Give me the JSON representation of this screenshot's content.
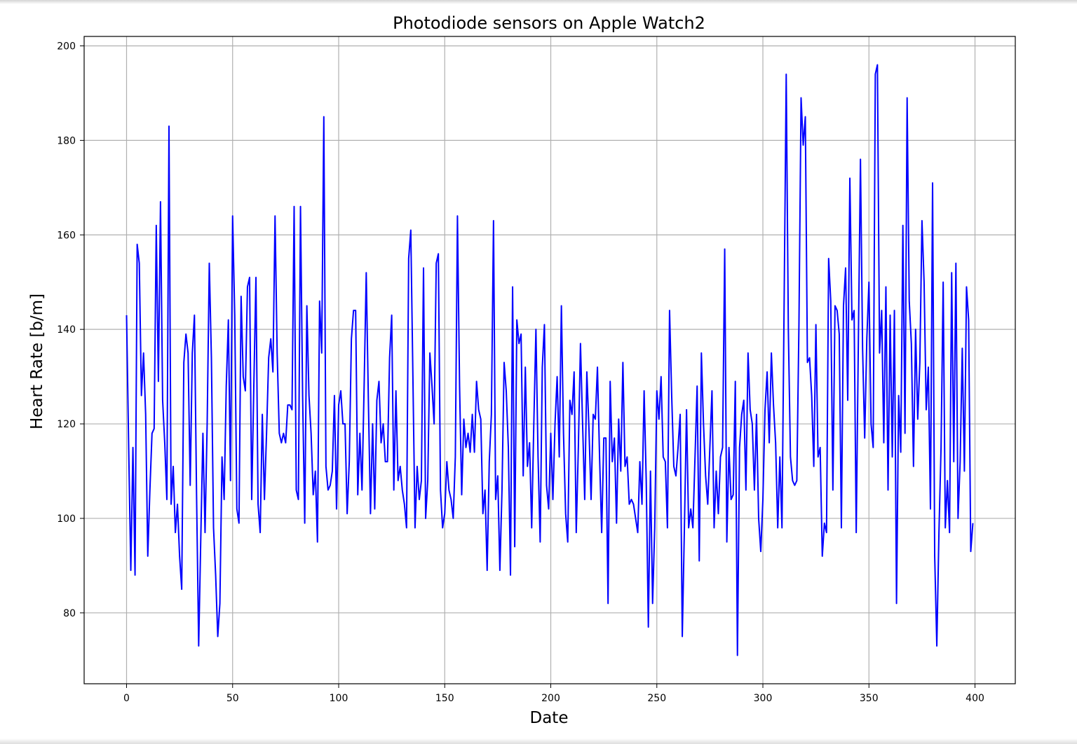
{
  "chart_data": {
    "type": "line",
    "title": "Photodiode sensors on Apple Watch2",
    "xlabel": "Date",
    "ylabel": "Heart Rate [b/m]",
    "xlim": [
      -20,
      419
    ],
    "ylim": [
      65,
      202
    ],
    "x_ticks": [
      0,
      50,
      100,
      150,
      200,
      250,
      300,
      350,
      400
    ],
    "y_ticks": [
      80,
      100,
      120,
      140,
      160,
      180,
      200
    ],
    "grid": true,
    "line_color": "#0000ff",
    "series": [
      {
        "x_start": 0,
        "x_step": 1,
        "values": [
          143,
          115,
          89,
          115,
          88,
          158,
          154,
          126,
          135,
          122,
          92,
          106,
          118,
          119,
          162,
          129,
          167,
          125,
          116,
          104,
          183,
          103,
          111,
          97,
          103,
          92,
          85,
          133,
          139,
          135,
          107,
          135,
          143,
          105,
          73,
          96,
          118,
          97,
          120,
          154,
          134,
          98,
          88,
          75,
          82,
          113,
          104,
          128,
          142,
          108,
          164,
          143,
          102,
          99,
          147,
          130,
          127,
          149,
          151,
          104,
          128,
          151,
          103,
          97,
          122,
          104,
          118,
          134,
          138,
          131,
          164,
          135,
          118,
          116,
          118,
          116,
          124,
          124,
          123,
          166,
          106,
          104,
          166,
          126,
          99,
          145,
          126,
          118,
          105,
          110,
          95,
          146,
          135,
          185,
          111,
          106,
          107,
          110,
          126,
          102,
          124,
          127,
          120,
          120,
          101,
          112,
          138,
          144,
          144,
          105,
          118,
          106,
          128,
          152,
          125,
          101,
          120,
          102,
          125,
          129,
          116,
          120,
          112,
          112,
          134,
          143,
          106,
          127,
          108,
          111,
          106,
          103,
          98,
          155,
          161,
          130,
          98,
          111,
          104,
          108,
          153,
          100,
          108,
          135,
          128,
          120,
          154,
          156,
          106,
          98,
          101,
          112,
          106,
          104,
          100,
          113,
          164,
          128,
          105,
          121,
          115,
          118,
          114,
          122,
          114,
          129,
          123,
          121,
          101,
          106,
          89,
          112,
          122,
          163,
          104,
          109,
          89,
          106,
          133,
          127,
          115,
          88,
          149,
          94,
          142,
          137,
          139,
          109,
          132,
          111,
          116,
          98,
          120,
          140,
          113,
          95,
          132,
          141,
          107,
          102,
          118,
          104,
          120,
          130,
          113,
          145,
          118,
          101,
          95,
          125,
          122,
          131,
          97,
          115,
          137,
          120,
          104,
          131,
          119,
          104,
          122,
          121,
          132,
          113,
          97,
          117,
          117,
          82,
          129,
          112,
          117,
          99,
          121,
          110,
          133,
          111,
          113,
          103,
          104,
          103,
          100,
          97,
          112,
          103,
          127,
          108,
          77,
          110,
          82,
          98,
          127,
          121,
          130,
          113,
          112,
          98,
          144,
          126,
          111,
          109,
          115,
          122,
          75,
          98,
          123,
          98,
          102,
          98,
          113,
          128,
          91,
          135,
          120,
          109,
          103,
          115,
          127,
          98,
          110,
          101,
          113,
          115,
          157,
          95,
          115,
          104,
          105,
          129,
          71,
          115,
          122,
          125,
          106,
          135,
          123,
          120,
          106,
          122,
          100,
          93,
          104,
          123,
          131,
          116,
          135,
          124,
          116,
          98,
          113,
          98,
          145,
          194,
          140,
          113,
          108,
          107,
          108,
          141,
          189,
          179,
          185,
          133,
          134,
          126,
          111,
          141,
          113,
          115,
          92,
          99,
          97,
          155,
          146,
          106,
          145,
          144,
          139,
          98,
          145,
          153,
          125,
          172,
          142,
          144,
          97,
          137,
          176,
          136,
          117,
          138,
          150,
          120,
          115,
          194,
          196,
          135,
          144,
          116,
          149,
          106,
          143,
          113,
          144,
          82,
          126,
          114,
          162,
          118,
          189,
          146,
          137,
          111,
          140,
          121,
          133,
          163,
          150,
          123,
          132,
          102,
          171,
          92,
          73,
          97,
          115,
          150,
          98,
          108,
          97,
          152,
          112,
          154,
          100,
          112,
          136,
          110,
          149,
          142,
          93,
          99
        ]
      }
    ]
  }
}
